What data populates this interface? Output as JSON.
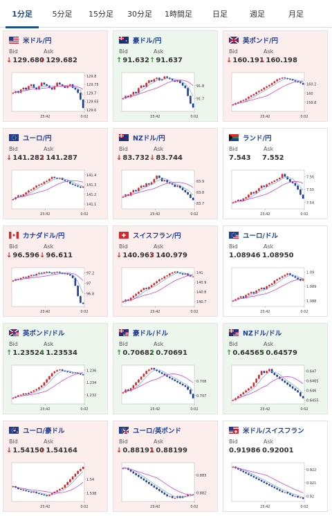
{
  "tabs": [
    {
      "label": "1分足",
      "active": true
    },
    {
      "label": "5分足",
      "active": false
    },
    {
      "label": "15分足",
      "active": false
    },
    {
      "label": "30分足",
      "active": false
    },
    {
      "label": "1時間足",
      "active": false
    },
    {
      "label": "日足",
      "active": false
    },
    {
      "label": "週足",
      "active": false
    },
    {
      "label": "月足",
      "active": false
    }
  ],
  "colors": {
    "up": "#2c9a2c",
    "down": "#d9262a",
    "ma": "#cc44cc",
    "pair_text": "#1b3e9a",
    "tab_active": "#1a4f8c"
  },
  "bid_label": "Bid",
  "ask_label": "Ask",
  "cards": [
    {
      "pair": "米ドル/円",
      "flag": "us",
      "bid": "129.680",
      "ask": "129.682",
      "dir": "down",
      "chart": {
        "x_labels": [
          "23:42",
          "0:02"
        ],
        "y_ticks": [
          "129.8",
          "129.75",
          "129.7",
          "129.65",
          "129.6"
        ],
        "ylim": [
          129.59,
          129.82
        ],
        "close": [
          129.7,
          129.71,
          129.7,
          129.72,
          129.73,
          129.72,
          129.74,
          129.75,
          129.73,
          129.72,
          129.74,
          129.76,
          129.75,
          129.74,
          129.73,
          129.72,
          129.74,
          129.76,
          129.75,
          129.74,
          129.73,
          129.74,
          129.75,
          129.73,
          129.72,
          129.7,
          129.66,
          129.61
        ]
      }
    },
    {
      "pair": "豪ドル/円",
      "flag": "au",
      "bid": "91.632",
      "ask": "91.637",
      "dir": "up",
      "chart": {
        "x_labels": [
          "23:42",
          "0:02"
        ],
        "y_ticks": [
          "91.8",
          "91.7"
        ],
        "ylim": [
          91.6,
          91.9
        ],
        "close": [
          91.7,
          91.72,
          91.71,
          91.73,
          91.75,
          91.74,
          91.78,
          91.8,
          91.79,
          91.82,
          91.84,
          91.83,
          91.85,
          91.86,
          91.84,
          91.85,
          91.87,
          91.86,
          91.85,
          91.84,
          91.83,
          91.84,
          91.82,
          91.8,
          91.78,
          91.72,
          91.66,
          91.63
        ]
      }
    },
    {
      "pair": "英ポンド/円",
      "flag": "uk",
      "bid": "160.191",
      "ask": "160.198",
      "dir": "down",
      "chart": {
        "x_labels": [
          "23:42",
          "0:02"
        ],
        "y_ticks": [
          "160.2",
          "160",
          "159.8"
        ],
        "ylim": [
          159.6,
          160.45
        ],
        "close": [
          159.75,
          159.78,
          159.8,
          159.83,
          159.85,
          159.88,
          159.92,
          159.95,
          159.98,
          160.02,
          160.05,
          160.08,
          160.12,
          160.15,
          160.18,
          160.22,
          160.26,
          160.3,
          160.32,
          160.34,
          160.33,
          160.31,
          160.3,
          160.28,
          160.26,
          160.24,
          160.22,
          160.19
        ]
      }
    },
    {
      "pair": "ユーロ/円",
      "flag": "eu",
      "bid": "141.282",
      "ask": "141.287",
      "dir": "down",
      "chart": {
        "x_labels": [
          "23:42",
          "0:02"
        ],
        "y_ticks": [
          "141.4",
          "141.3",
          "141.2",
          "141.1"
        ],
        "ylim": [
          141.05,
          141.45
        ],
        "close": [
          141.15,
          141.17,
          141.19,
          141.18,
          141.2,
          141.22,
          141.24,
          141.25,
          141.27,
          141.29,
          141.3,
          141.31,
          141.33,
          141.34,
          141.36,
          141.38,
          141.37,
          141.36,
          141.37,
          141.35,
          141.34,
          141.33,
          141.31,
          141.3,
          141.29,
          141.28,
          141.27,
          141.28
        ]
      }
    },
    {
      "pair": "NZドル/円",
      "flag": "nz",
      "bid": "83.732",
      "ask": "83.744",
      "dir": "down",
      "chart": {
        "x_labels": [
          "23:42",
          "0:02"
        ],
        "y_ticks": [
          "83.9",
          "83.8",
          "83.7"
        ],
        "ylim": [
          83.65,
          84.0
        ],
        "close": [
          83.76,
          83.78,
          83.77,
          83.8,
          83.82,
          83.81,
          83.84,
          83.86,
          83.85,
          83.88,
          83.87,
          83.89,
          83.92,
          83.95,
          83.93,
          83.9,
          83.91,
          83.89,
          83.88,
          83.87,
          83.85,
          83.86,
          83.84,
          83.82,
          83.8,
          83.78,
          83.75,
          83.73
        ]
      }
    },
    {
      "pair": "ランド/円",
      "flag": "za",
      "bid": "7.543",
      "ask": "7.552",
      "dir": "flat",
      "chart": {
        "x_labels": [
          "23:42",
          "0:02"
        ],
        "y_ticks": [
          "7.56",
          "7.55",
          "7.54"
        ],
        "ylim": [
          7.535,
          7.565
        ],
        "close": [
          7.54,
          7.541,
          7.542,
          7.541,
          7.543,
          7.544,
          7.546,
          7.548,
          7.547,
          7.549,
          7.551,
          7.553,
          7.552,
          7.554,
          7.555,
          7.556,
          7.557,
          7.558,
          7.559,
          7.562,
          7.56,
          7.558,
          7.556,
          7.555,
          7.553,
          7.55,
          7.546,
          7.543
        ]
      }
    },
    {
      "pair": "カナダドル/円",
      "flag": "ca",
      "bid": "96.596",
      "ask": "96.611",
      "dir": "down",
      "chart": {
        "x_labels": [
          "23:42",
          "0:02"
        ],
        "y_ticks": [
          "97.2",
          "97",
          "96.8"
        ],
        "ylim": [
          96.55,
          97.3
        ],
        "close": [
          97.05,
          97.08,
          97.07,
          97.1,
          97.12,
          97.11,
          97.14,
          97.16,
          97.15,
          97.18,
          97.2,
          97.19,
          97.21,
          97.22,
          97.2,
          97.19,
          97.21,
          97.22,
          97.2,
          97.18,
          97.19,
          97.17,
          97.15,
          97.1,
          96.95,
          96.75,
          96.62,
          96.6
        ]
      }
    },
    {
      "pair": "スイスフラン/円",
      "flag": "ch",
      "bid": "140.963",
      "ask": "140.979",
      "dir": "down",
      "chart": {
        "x_labels": [
          "23:42",
          "0:02"
        ],
        "y_ticks": [
          "141",
          "140.9",
          "140.8",
          "140.7"
        ],
        "ylim": [
          140.65,
          141.05
        ],
        "close": [
          140.7,
          140.72,
          140.71,
          140.74,
          140.76,
          140.78,
          140.8,
          140.82,
          140.84,
          140.83,
          140.85,
          140.87,
          140.89,
          140.91,
          140.93,
          140.94,
          140.96,
          140.97,
          140.99,
          141.0,
          141.01,
          141.0,
          140.99,
          140.98,
          140.99,
          140.97,
          140.96,
          140.96
        ]
      }
    },
    {
      "pair": "ユーロ/ドル",
      "flag": "eu_us",
      "bid": "1.08946",
      "ask": "1.08950",
      "dir": "flat",
      "chart": {
        "x_labels": [
          "23:42",
          "0:02"
        ],
        "y_ticks": [
          "1.09",
          "1.089",
          "1.088"
        ],
        "ylim": [
          1.0876,
          1.0903
        ],
        "close": [
          1.088,
          1.0881,
          1.0882,
          1.0883,
          1.0882,
          1.0884,
          1.0885,
          1.0886,
          1.0885,
          1.0887,
          1.0888,
          1.0889,
          1.0888,
          1.089,
          1.0891,
          1.0892,
          1.0894,
          1.0895,
          1.0896,
          1.0897,
          1.0898,
          1.0899,
          1.0898,
          1.0897,
          1.0896,
          1.0895,
          1.0894,
          1.0895
        ]
      }
    },
    {
      "pair": "英ポンド/ドル",
      "flag": "uk_us",
      "bid": "1.23524",
      "ask": "1.23534",
      "dir": "up",
      "chart": {
        "x_labels": [
          "23:42",
          "0:02"
        ],
        "y_ticks": [
          "1.236",
          "1.234",
          "1.232"
        ],
        "ylim": [
          1.2305,
          1.2368
        ],
        "close": [
          1.2315,
          1.2317,
          1.2319,
          1.232,
          1.2322,
          1.2321,
          1.2323,
          1.2325,
          1.2327,
          1.2329,
          1.2332,
          1.2335,
          1.234,
          1.2345,
          1.235,
          1.2355,
          1.2358,
          1.236,
          1.2361,
          1.2359,
          1.2358,
          1.2357,
          1.2356,
          1.2355,
          1.2356,
          1.2354,
          1.2353,
          1.2352
        ]
      }
    },
    {
      "pair": "豪ドル/ドル",
      "flag": "au_us",
      "bid": "0.70682",
      "ask": "0.70691",
      "dir": "up",
      "chart": {
        "x_labels": [
          "23:42",
          "0:02"
        ],
        "y_ticks": [
          "0.708",
          "0.707"
        ],
        "ylim": [
          0.7064,
          0.7091
        ],
        "close": [
          0.7072,
          0.7074,
          0.7073,
          0.7075,
          0.7077,
          0.7079,
          0.7081,
          0.7083,
          0.7085,
          0.7087,
          0.7088,
          0.7089,
          0.7088,
          0.7087,
          0.7086,
          0.7085,
          0.7084,
          0.7083,
          0.7082,
          0.7081,
          0.708,
          0.7079,
          0.7078,
          0.7077,
          0.7076,
          0.7074,
          0.7071,
          0.7068
        ]
      }
    },
    {
      "pair": "NZドル/ドル",
      "flag": "nz_us",
      "bid": "0.64565",
      "ask": "0.64579",
      "dir": "up",
      "chart": {
        "x_labels": [
          "23:42",
          "0:02"
        ],
        "y_ticks": [
          "0.647",
          "0.6465",
          "0.646",
          "0.6455"
        ],
        "ylim": [
          0.6453,
          0.6473
        ],
        "close": [
          0.6455,
          0.6456,
          0.6457,
          0.6458,
          0.6459,
          0.646,
          0.6461,
          0.6462,
          0.6464,
          0.6466,
          0.6468,
          0.647,
          0.6469,
          0.647,
          0.6471,
          0.6469,
          0.6468,
          0.6467,
          0.6466,
          0.6465,
          0.6464,
          0.6463,
          0.6462,
          0.6461,
          0.646,
          0.6459,
          0.6457,
          0.6456
        ]
      }
    },
    {
      "pair": "ユーロ/豪ドル",
      "flag": "eu_au",
      "bid": "1.54150",
      "ask": "1.54164",
      "dir": "down",
      "chart": {
        "x_labels": [
          "23:42",
          "0:02"
        ],
        "y_ticks": [
          "1.54",
          "1.538"
        ],
        "ylim": [
          1.5368,
          1.5424
        ],
        "close": [
          1.539,
          1.5388,
          1.5386,
          1.5385,
          1.5384,
          1.5383,
          1.5382,
          1.5381,
          1.5382,
          1.538,
          1.5379,
          1.5378,
          1.5377,
          1.5376,
          1.5378,
          1.538,
          1.5382,
          1.5384,
          1.5386,
          1.5388,
          1.5392,
          1.5396,
          1.54,
          1.5404,
          1.5408,
          1.5412,
          1.5415,
          1.5418
        ]
      }
    },
    {
      "pair": "ユーロ/英ポンド",
      "flag": "eu_uk",
      "bid": "0.88191",
      "ask": "0.88199",
      "dir": "down",
      "chart": {
        "x_labels": [
          "23:42",
          "0:02"
        ],
        "y_ticks": [
          "0.883",
          "0.882"
        ],
        "ylim": [
          0.8815,
          0.8837
        ],
        "close": [
          0.8834,
          0.8834,
          0.8833,
          0.8832,
          0.8831,
          0.883,
          0.8829,
          0.8828,
          0.8827,
          0.8826,
          0.8825,
          0.8824,
          0.8823,
          0.8822,
          0.8821,
          0.882,
          0.8819,
          0.8818,
          0.8818,
          0.8817,
          0.8817,
          0.8818,
          0.8817,
          0.8818,
          0.8818,
          0.8819,
          0.8819,
          0.8819
        ]
      }
    },
    {
      "pair": "米ドル/スイスフラン",
      "flag": "us_ch",
      "bid": "0.91986",
      "ask": "0.92001",
      "dir": "flat",
      "chart": {
        "x_labels": [
          "23:42",
          "0:02"
        ],
        "y_ticks": [
          "0.922",
          "0.921",
          "0.92"
        ],
        "ylim": [
          0.9196,
          0.9225
        ],
        "close": [
          0.9222,
          0.9221,
          0.922,
          0.9219,
          0.9218,
          0.9217,
          0.9216,
          0.9215,
          0.9214,
          0.9213,
          0.9212,
          0.9211,
          0.921,
          0.9209,
          0.9208,
          0.9207,
          0.9206,
          0.9205,
          0.9204,
          0.9203,
          0.9203,
          0.9202,
          0.9201,
          0.92,
          0.92,
          0.9199,
          0.9199,
          0.9198
        ]
      }
    }
  ]
}
